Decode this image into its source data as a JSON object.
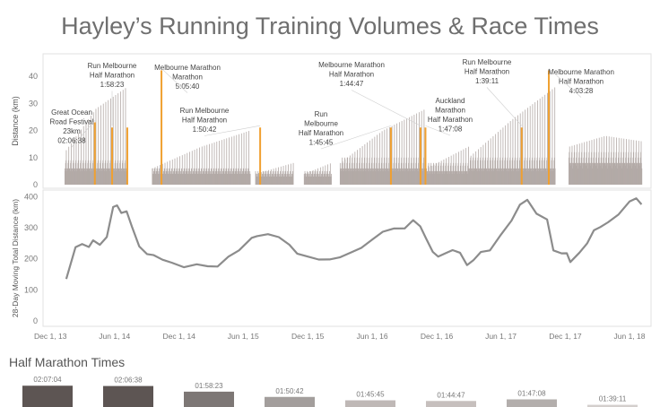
{
  "title": "Hayley’s Running Training Volumes & Race Times",
  "chart_data": [
    {
      "type": "bar",
      "name": "distance",
      "ylabel": "Distance (km)",
      "ylim": [
        0,
        45
      ],
      "yticks": [
        0,
        10,
        20,
        30,
        40
      ],
      "xlim": [
        "2013-11-10",
        "2018-08-01"
      ],
      "weekly_pattern": [
        4,
        5,
        4,
        7,
        8,
        18,
        5
      ],
      "periods": [
        {
          "start": "2014-01-10",
          "end": "2014-07-05",
          "pattern": [
            5,
            6,
            5,
            8,
            9,
            22,
            6
          ],
          "peak": [
            12,
            28,
            36
          ]
        },
        {
          "start": "2014-09-15",
          "end": "2015-06-20",
          "pattern": [
            4,
            5,
            4,
            6,
            6,
            10,
            4
          ],
          "peak": [
            6,
            14,
            20
          ]
        },
        {
          "start": "2015-07-05",
          "end": "2015-10-20",
          "pattern": [
            3,
            4,
            3,
            5,
            4,
            6,
            3
          ],
          "peak": [
            4,
            6,
            8
          ]
        },
        {
          "start": "2015-11-20",
          "end": "2016-02-05",
          "pattern": [
            3,
            4,
            3,
            5,
            4,
            6,
            3
          ],
          "peak": [
            4,
            6,
            8
          ]
        },
        {
          "start": "2016-03-01",
          "end": "2016-10-30",
          "pattern": [
            5,
            6,
            5,
            8,
            10,
            22,
            6
          ],
          "peak": [
            8,
            20,
            28
          ]
        },
        {
          "start": "2016-11-01",
          "end": "2017-02-28",
          "pattern": [
            4,
            5,
            4,
            7,
            8,
            12,
            5
          ],
          "peak": [
            6,
            10,
            14
          ]
        },
        {
          "start": "2017-03-01",
          "end": "2017-11-01",
          "pattern": [
            5,
            6,
            5,
            9,
            10,
            24,
            6
          ],
          "peak": [
            10,
            24,
            36
          ]
        },
        {
          "start": "2017-12-10",
          "end": "2018-07-05",
          "pattern": [
            6,
            8,
            7,
            10,
            12,
            20,
            8
          ],
          "peak": [
            14,
            18,
            16
          ]
        }
      ],
      "races": [
        {
          "date": "2014-04-06",
          "km": 23,
          "race_label": "Great Ocean Road Festival",
          "extra": "23km",
          "time_text": "02:06:38",
          "lines": [
            "Great Ocean",
            "Road Festival",
            "23km",
            "02:06:38"
          ]
        },
        {
          "date": "2014-05-25",
          "km": 21.1,
          "time_text": "1:58:23",
          "lines": [
            "Run Melbourne",
            "Half Marathon",
            "1:58:23"
          ]
        },
        {
          "date": "2014-07-07",
          "km": 21.1,
          "lines": []
        },
        {
          "date": "2014-10-12",
          "km": 42.2,
          "time_text": "5:05:40",
          "lines": [
            "Melbourne Marathon",
            "Marathon",
            "5:05:40"
          ]
        },
        {
          "date": "2015-07-19",
          "km": 21.1,
          "time_text": "1:50:42",
          "lines": [
            "Run Melbourne",
            "Half Marathon",
            "1:50:42"
          ]
        },
        {
          "date": "2016-07-24",
          "km": 21.1,
          "time_text": "1:45:45",
          "lines": [
            "Run",
            "Melbourne",
            "Half Marathon",
            "1:45:45"
          ]
        },
        {
          "date": "2016-10-16",
          "km": 21.1,
          "time_text": "1:44:47",
          "lines": [
            "Melbourne Marathon",
            "Half Marathon",
            "1:44:47"
          ]
        },
        {
          "date": "2016-10-30",
          "km": 21.1,
          "time_text": "1:47:08",
          "lines": [
            "Auckland",
            "Marathon",
            "Half Marathon",
            "1:47:08"
          ]
        },
        {
          "date": "2017-07-30",
          "km": 21.1,
          "time_text": "1:39:11",
          "lines": [
            "Run Melbourne",
            "Half Marathon",
            "1:39:11"
          ]
        },
        {
          "date": "2017-10-15",
          "km": 42.2,
          "time_text": "4:03:28",
          "lines": [
            "Melbourne Marathon",
            "Half Marathon",
            "4:03:28"
          ]
        }
      ],
      "race_color": "#f0a030",
      "bar_color": "#b3aaa7"
    },
    {
      "type": "line",
      "name": "moving-total",
      "ylabel": "28-Day Moving Total Distance (km)",
      "ylim": [
        0,
        410
      ],
      "yticks": [
        0,
        100,
        200,
        300,
        400
      ],
      "x_ticks": [
        {
          "date": "2013-12-01",
          "label": "Dec 1, 13"
        },
        {
          "date": "2014-06-01",
          "label": "Jun 1, 14"
        },
        {
          "date": "2014-12-01",
          "label": "Dec 1, 14"
        },
        {
          "date": "2015-06-01",
          "label": "Jun 1, 15"
        },
        {
          "date": "2015-12-01",
          "label": "Dec 1, 15"
        },
        {
          "date": "2016-06-01",
          "label": "Jun 1, 16"
        },
        {
          "date": "2016-12-01",
          "label": "Dec 1, 16"
        },
        {
          "date": "2017-06-01",
          "label": "Jun 1, 17"
        },
        {
          "date": "2017-12-01",
          "label": "Dec 1, 17"
        },
        {
          "date": "2018-06-01",
          "label": "Jun 1, 18"
        }
      ],
      "points": [
        [
          "2014-01-15",
          135
        ],
        [
          "2014-02-10",
          235
        ],
        [
          "2014-03-01",
          250
        ],
        [
          "2014-03-20",
          245
        ],
        [
          "2014-04-01",
          255
        ],
        [
          "2014-04-20",
          245
        ],
        [
          "2014-05-10",
          275
        ],
        [
          "2014-05-28",
          360
        ],
        [
          "2014-06-08",
          370
        ],
        [
          "2014-06-20",
          350
        ],
        [
          "2014-07-05",
          360
        ],
        [
          "2014-07-20",
          300
        ],
        [
          "2014-08-10",
          240
        ],
        [
          "2014-09-01",
          220
        ],
        [
          "2014-09-20",
          205
        ],
        [
          "2014-10-15",
          195
        ],
        [
          "2014-11-10",
          190
        ],
        [
          "2014-12-15",
          180
        ],
        [
          "2015-01-20",
          178
        ],
        [
          "2015-02-20",
          176
        ],
        [
          "2015-03-20",
          180
        ],
        [
          "2015-04-20",
          200
        ],
        [
          "2015-05-20",
          225
        ],
        [
          "2015-06-25",
          270
        ],
        [
          "2015-07-10",
          280
        ],
        [
          "2015-08-10",
          275
        ],
        [
          "2015-09-10",
          270
        ],
        [
          "2015-10-10",
          250
        ],
        [
          "2015-11-01",
          210
        ],
        [
          "2015-12-01",
          205
        ],
        [
          "2016-01-01",
          200
        ],
        [
          "2016-02-01",
          205
        ],
        [
          "2016-03-01",
          200
        ],
        [
          "2016-04-01",
          220
        ],
        [
          "2016-05-01",
          240
        ],
        [
          "2016-06-01",
          255
        ],
        [
          "2016-07-01",
          285
        ],
        [
          "2016-08-01",
          300
        ],
        [
          "2016-09-01",
          305
        ],
        [
          "2016-09-25",
          320
        ],
        [
          "2016-10-15",
          305
        ],
        [
          "2016-11-01",
          270
        ],
        [
          "2016-11-20",
          215
        ],
        [
          "2016-12-05",
          205
        ],
        [
          "2016-12-25",
          220
        ],
        [
          "2017-01-15",
          235
        ],
        [
          "2017-02-05",
          215
        ],
        [
          "2017-02-25",
          180
        ],
        [
          "2017-03-15",
          200
        ],
        [
          "2017-04-05",
          215
        ],
        [
          "2017-05-01",
          225
        ],
        [
          "2017-06-01",
          280
        ],
        [
          "2017-07-01",
          330
        ],
        [
          "2017-07-25",
          370
        ],
        [
          "2017-08-15",
          390
        ],
        [
          "2017-09-10",
          350
        ],
        [
          "2017-10-10",
          320
        ],
        [
          "2017-10-28",
          225
        ],
        [
          "2017-11-20",
          220
        ],
        [
          "2017-12-05",
          225
        ],
        [
          "2017-12-15",
          185
        ],
        [
          "2018-01-10",
          220
        ],
        [
          "2018-02-01",
          255
        ],
        [
          "2018-02-20",
          285
        ],
        [
          "2018-03-10",
          300
        ],
        [
          "2018-04-01",
          320
        ],
        [
          "2018-05-01",
          350
        ],
        [
          "2018-06-01",
          380
        ],
        [
          "2018-06-20",
          395
        ],
        [
          "2018-07-05",
          380
        ]
      ],
      "line_color": "#8c8c8c"
    },
    {
      "type": "bar",
      "name": "half-marathon-times",
      "title": "Half Marathon Times",
      "categories": [
        "02:07:04",
        "02:06:38",
        "01:58:23",
        "01:50:42",
        "01:45:45",
        "01:44:47",
        "01:47:08",
        "01:39:11"
      ],
      "values_minutes": [
        127.07,
        126.63,
        118.38,
        110.7,
        105.75,
        104.78,
        107.13,
        99.18
      ],
      "colors": [
        "#5d5553",
        "#5d5553",
        "#7d7775",
        "#a39e9c",
        "#bfb8b6",
        "#c6bfbd",
        "#b3aeac",
        "#d4cfcd"
      ]
    }
  ]
}
